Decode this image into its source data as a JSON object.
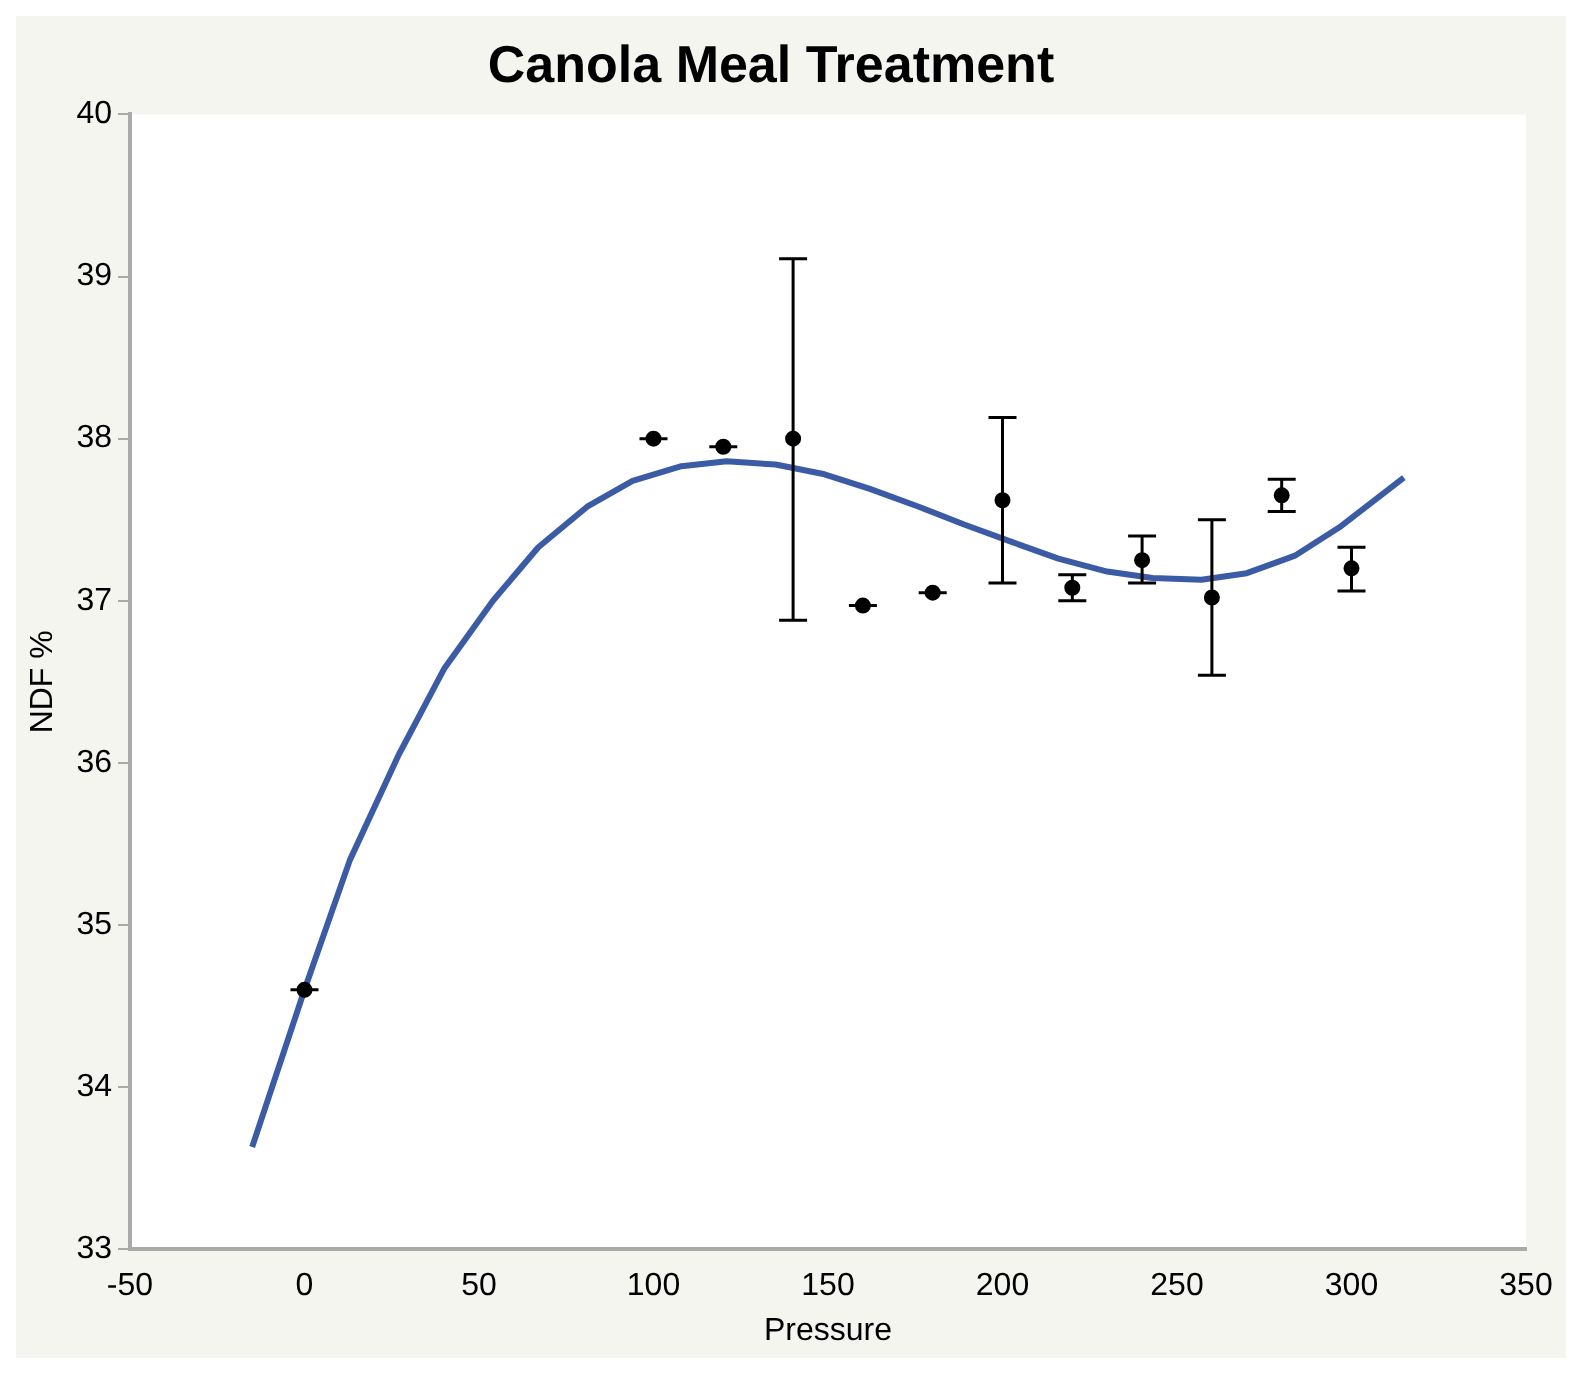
{
  "chart_data": {
    "type": "scatter",
    "title": "Canola Meal Treatment",
    "xlabel": "Pressure",
    "ylabel": "NDF %",
    "xlim": [
      -50,
      350
    ],
    "xticks": [
      -50,
      0,
      50,
      100,
      150,
      200,
      250,
      300,
      350
    ],
    "ylim": [
      33,
      40
    ],
    "yticks": [
      33,
      34,
      35,
      36,
      37,
      38,
      39,
      40
    ],
    "grid": false,
    "legend": false,
    "series": [
      {
        "type": "scatter",
        "color": "#000000",
        "marker": "circle",
        "x": [
          0,
          100,
          120,
          140,
          160,
          180,
          200,
          220,
          240,
          260,
          280,
          300
        ],
        "values": [
          34.6,
          38.0,
          37.95,
          38.0,
          36.97,
          37.05,
          37.62,
          37.08,
          37.25,
          37.02,
          37.65,
          37.2
        ],
        "errors": [
          [
            34.6,
            34.6
          ],
          [
            38.0,
            38.0
          ],
          [
            37.95,
            37.95
          ],
          [
            36.88,
            39.11
          ],
          [
            36.97,
            36.97
          ],
          [
            37.05,
            37.05
          ],
          [
            37.11,
            38.13
          ],
          [
            37.0,
            37.16
          ],
          [
            37.11,
            37.4
          ],
          [
            36.54,
            37.5
          ],
          [
            37.55,
            37.75
          ],
          [
            37.06,
            37.33
          ]
        ]
      },
      {
        "type": "line",
        "color": "#3b5ba5",
        "marker": "none",
        "line_style": "solid",
        "x": [
          -15,
          0,
          13,
          27,
          40,
          54,
          67,
          81,
          94,
          108,
          121,
          135,
          149,
          162,
          176,
          189,
          203,
          216,
          230,
          243,
          257,
          270,
          284,
          297,
          315
        ],
        "values": [
          33.63,
          34.6,
          35.4,
          36.05,
          36.58,
          37.0,
          37.33,
          37.58,
          37.74,
          37.83,
          37.86,
          37.84,
          37.78,
          37.69,
          37.58,
          37.47,
          37.36,
          37.26,
          37.18,
          37.14,
          37.13,
          37.17,
          37.28,
          37.46,
          37.76
        ]
      }
    ]
  }
}
